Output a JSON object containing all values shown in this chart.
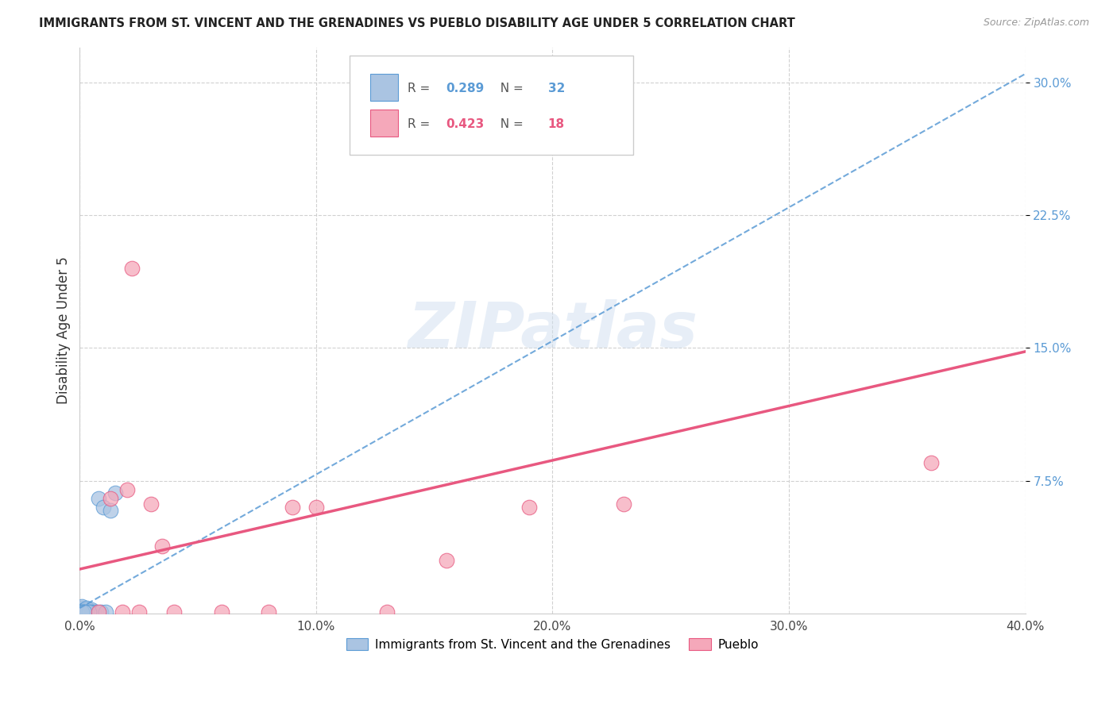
{
  "title": "IMMIGRANTS FROM ST. VINCENT AND THE GRENADINES VS PUEBLO DISABILITY AGE UNDER 5 CORRELATION CHART",
  "source": "Source: ZipAtlas.com",
  "ylabel": "Disability Age Under 5",
  "xlim": [
    0.0,
    0.4
  ],
  "ylim": [
    0.0,
    0.32
  ],
  "xticks": [
    0.0,
    0.1,
    0.2,
    0.3,
    0.4
  ],
  "yticks": [
    0.075,
    0.15,
    0.225,
    0.3
  ],
  "xticklabels": [
    "0.0%",
    "10.0%",
    "20.0%",
    "30.0%",
    "40.0%"
  ],
  "yticklabels": [
    "7.5%",
    "15.0%",
    "22.5%",
    "30.0%"
  ],
  "legend_labels": [
    "Immigrants from St. Vincent and the Grenadines",
    "Pueblo"
  ],
  "blue_R": "0.289",
  "blue_N": "32",
  "pink_R": "0.423",
  "pink_N": "18",
  "blue_color": "#aac4e2",
  "pink_color": "#f5a8ba",
  "blue_line_color": "#5b9bd5",
  "pink_line_color": "#e85880",
  "watermark_color": "#d0dff0",
  "blue_points_x": [
    0.001,
    0.001,
    0.001,
    0.001,
    0.001,
    0.001,
    0.002,
    0.002,
    0.002,
    0.002,
    0.003,
    0.003,
    0.003,
    0.004,
    0.004,
    0.005,
    0.005,
    0.005,
    0.006,
    0.007,
    0.008,
    0.009,
    0.01,
    0.011,
    0.013,
    0.015,
    0.001,
    0.002,
    0.003,
    0.004,
    0.001,
    0.002
  ],
  "blue_points_y": [
    0.001,
    0.002,
    0.003,
    0.004,
    0.001,
    0.001,
    0.001,
    0.002,
    0.001,
    0.001,
    0.001,
    0.002,
    0.003,
    0.001,
    0.001,
    0.001,
    0.002,
    0.001,
    0.001,
    0.001,
    0.065,
    0.001,
    0.06,
    0.001,
    0.058,
    0.068,
    0.001,
    0.001,
    0.001,
    0.001,
    0.001,
    0.001
  ],
  "pink_points_x": [
    0.008,
    0.013,
    0.018,
    0.02,
    0.022,
    0.025,
    0.03,
    0.035,
    0.04,
    0.06,
    0.08,
    0.09,
    0.1,
    0.13,
    0.155,
    0.19,
    0.23,
    0.36
  ],
  "pink_points_y": [
    0.001,
    0.065,
    0.001,
    0.07,
    0.195,
    0.001,
    0.062,
    0.038,
    0.001,
    0.001,
    0.001,
    0.06,
    0.06,
    0.001,
    0.03,
    0.06,
    0.062,
    0.085
  ],
  "blue_trendline_x0": 0.0,
  "blue_trendline_y0": 0.003,
  "blue_trendline_x1": 0.4,
  "blue_trendline_y1": 0.305,
  "pink_trendline_x0": 0.0,
  "pink_trendline_y0": 0.025,
  "pink_trendline_x1": 0.4,
  "pink_trendline_y1": 0.148
}
